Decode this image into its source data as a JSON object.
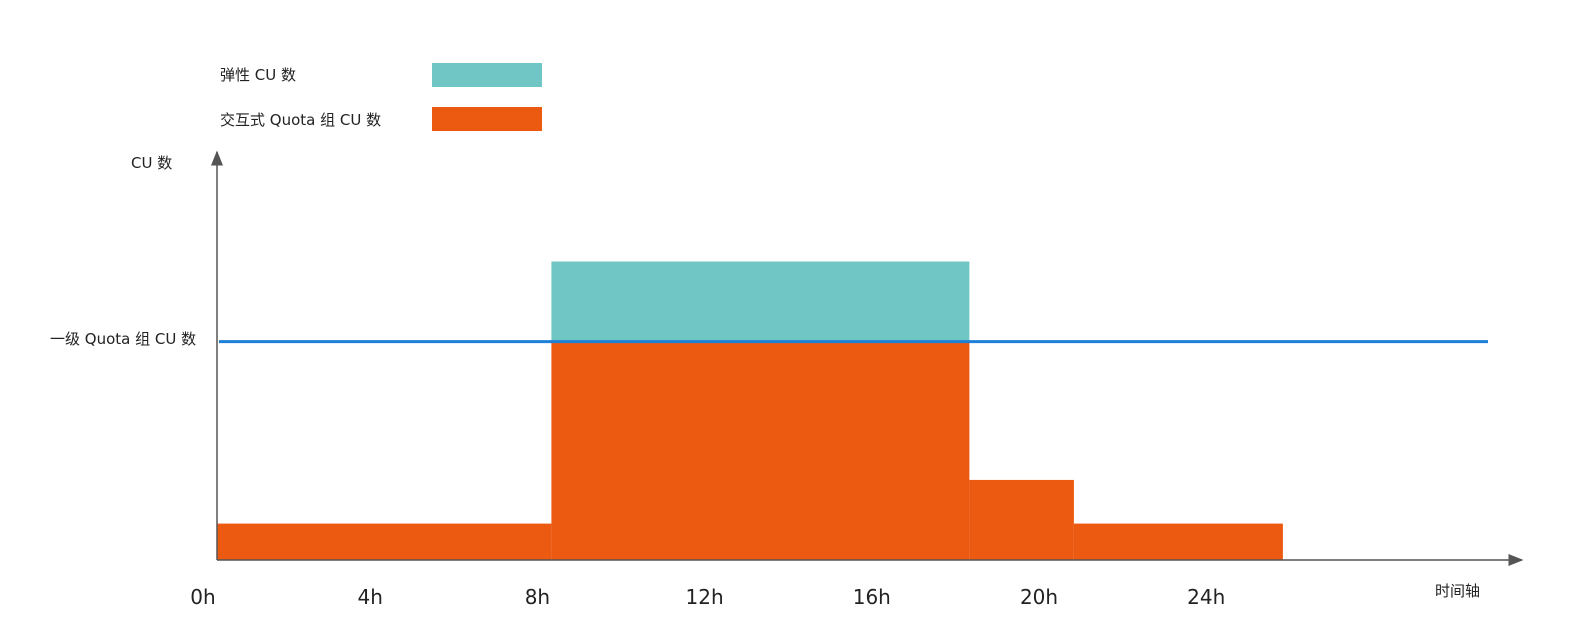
{
  "chart_data": {
    "type": "area",
    "ylabel": "CU 数",
    "xlabel": "时间轴",
    "xlim": [
      0,
      30
    ],
    "ylim": [
      0,
      1.1
    ],
    "x_ticks": [
      {
        "value": 0,
        "label": "0h"
      },
      {
        "value": 4,
        "label": "4h"
      },
      {
        "value": 8,
        "label": "8h"
      },
      {
        "value": 12,
        "label": "12h"
      },
      {
        "value": 16,
        "label": "16h"
      },
      {
        "value": 20,
        "label": "20h"
      },
      {
        "value": 24,
        "label": "24h"
      }
    ],
    "reference_line": {
      "name": "一级 Quota 组 CU 数",
      "value": 0.6,
      "color": "#1e7fd8"
    },
    "legend": {
      "placement": "top-left"
    },
    "series": [
      {
        "name": "交互式 Quota 组 CU 数",
        "color": "#ec5a12",
        "steps": [
          {
            "x0": 0,
            "x1": 8,
            "y": 0.1
          },
          {
            "x0": 8,
            "x1": 18,
            "y": 0.6
          },
          {
            "x0": 18,
            "x1": 20.5,
            "y": 0.22
          },
          {
            "x0": 20.5,
            "x1": 25.5,
            "y": 0.1
          }
        ]
      },
      {
        "name": "弹性 CU 数",
        "color": "#70c6c4",
        "steps": [
          {
            "x0": 8,
            "x1": 18,
            "y0": 0.6,
            "y": 0.82
          }
        ]
      }
    ]
  }
}
